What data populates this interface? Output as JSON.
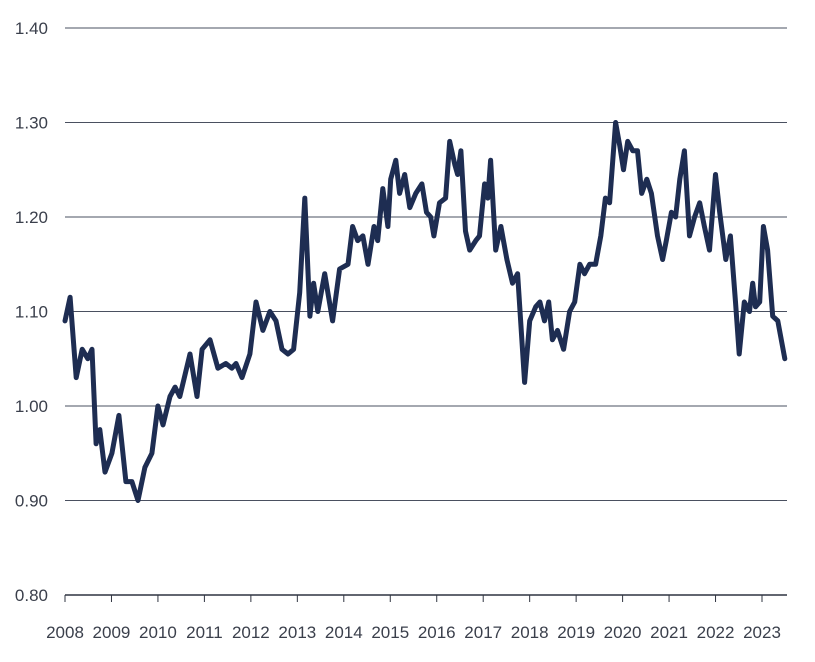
{
  "chart_data": {
    "type": "line",
    "title": "",
    "xlabel": "",
    "ylabel": "",
    "xlim": [
      2008,
      2023.55
    ],
    "ylim": [
      0.8,
      1.4
    ],
    "grid": true,
    "line_color": "#1e2d52",
    "grid_color": "#4a5060",
    "y_ticks": [
      "0.80",
      "0.90",
      "1.00",
      "1.10",
      "1.20",
      "1.30",
      "1.40"
    ],
    "x_ticks": [
      "2008",
      "2009",
      "2010",
      "2011",
      "2012",
      "2013",
      "2014",
      "2015",
      "2016",
      "2017",
      "2018",
      "2019",
      "2020",
      "2021",
      "2022",
      "2023"
    ],
    "series": [
      {
        "name": "series",
        "x": [
          2008.0,
          2008.11,
          2008.24,
          2008.37,
          2008.49,
          2008.58,
          2008.67,
          2008.75,
          2008.86,
          2009.01,
          2009.16,
          2009.31,
          2009.44,
          2009.57,
          2009.72,
          2009.87,
          2010.0,
          2010.11,
          2010.26,
          2010.37,
          2010.47,
          2010.69,
          2010.84,
          2010.95,
          2011.12,
          2011.29,
          2011.46,
          2011.59,
          2011.68,
          2011.81,
          2011.98,
          2012.11,
          2012.26,
          2012.41,
          2012.54,
          2012.67,
          2012.8,
          2012.92,
          2013.05,
          2013.16,
          2013.27,
          2013.35,
          2013.44,
          2013.59,
          2013.76,
          2013.91,
          2014.09,
          2014.19,
          2014.3,
          2014.41,
          2014.52,
          2014.65,
          2014.73,
          2014.84,
          2014.95,
          2015.01,
          2015.12,
          2015.2,
          2015.31,
          2015.42,
          2015.55,
          2015.68,
          2015.78,
          2015.87,
          2015.94,
          2016.06,
          2016.19,
          2016.28,
          2016.39,
          2016.45,
          2016.52,
          2016.62,
          2016.71,
          2016.84,
          2016.92,
          2017.03,
          2017.1,
          2017.16,
          2017.27,
          2017.38,
          2017.51,
          2017.63,
          2017.74,
          2017.89,
          2018.0,
          2018.13,
          2018.22,
          2018.32,
          2018.41,
          2018.49,
          2018.6,
          2018.73,
          2018.86,
          2018.97,
          2019.08,
          2019.18,
          2019.29,
          2019.42,
          2019.53,
          2019.63,
          2019.72,
          2019.85,
          2019.94,
          2020.02,
          2020.11,
          2020.22,
          2020.32,
          2020.41,
          2020.52,
          2020.62,
          2020.75,
          2020.86,
          2020.94,
          2021.05,
          2021.14,
          2021.23,
          2021.33,
          2021.44,
          2021.55,
          2021.66,
          2021.76,
          2021.87,
          2022.0,
          2022.09,
          2022.22,
          2022.32,
          2022.43,
          2022.51,
          2022.62,
          2022.73,
          2022.8,
          2022.86,
          2022.95,
          2023.03,
          2023.12,
          2023.23,
          2023.34,
          2023.49
        ],
        "y": [
          1.09,
          1.115,
          1.03,
          1.06,
          1.05,
          1.06,
          0.96,
          0.975,
          0.93,
          0.95,
          0.99,
          0.92,
          0.92,
          0.9,
          0.935,
          0.95,
          1.0,
          0.98,
          1.01,
          1.02,
          1.01,
          1.055,
          1.01,
          1.06,
          1.07,
          1.04,
          1.045,
          1.04,
          1.045,
          1.03,
          1.055,
          1.11,
          1.08,
          1.1,
          1.09,
          1.06,
          1.055,
          1.06,
          1.12,
          1.22,
          1.095,
          1.13,
          1.1,
          1.14,
          1.09,
          1.145,
          1.15,
          1.19,
          1.175,
          1.18,
          1.15,
          1.19,
          1.175,
          1.23,
          1.19,
          1.24,
          1.26,
          1.225,
          1.245,
          1.21,
          1.225,
          1.235,
          1.205,
          1.2,
          1.18,
          1.215,
          1.22,
          1.28,
          1.255,
          1.245,
          1.27,
          1.185,
          1.165,
          1.175,
          1.18,
          1.235,
          1.22,
          1.26,
          1.165,
          1.19,
          1.155,
          1.13,
          1.14,
          1.025,
          1.09,
          1.105,
          1.11,
          1.09,
          1.11,
          1.07,
          1.08,
          1.06,
          1.1,
          1.11,
          1.15,
          1.14,
          1.15,
          1.15,
          1.18,
          1.22,
          1.215,
          1.3,
          1.275,
          1.25,
          1.28,
          1.27,
          1.27,
          1.225,
          1.24,
          1.225,
          1.18,
          1.155,
          1.175,
          1.205,
          1.2,
          1.24,
          1.27,
          1.18,
          1.2,
          1.215,
          1.19,
          1.165,
          1.245,
          1.205,
          1.155,
          1.18,
          1.11,
          1.055,
          1.11,
          1.1,
          1.13,
          1.105,
          1.11,
          1.19,
          1.165,
          1.095,
          1.09,
          1.05
        ]
      }
    ]
  }
}
